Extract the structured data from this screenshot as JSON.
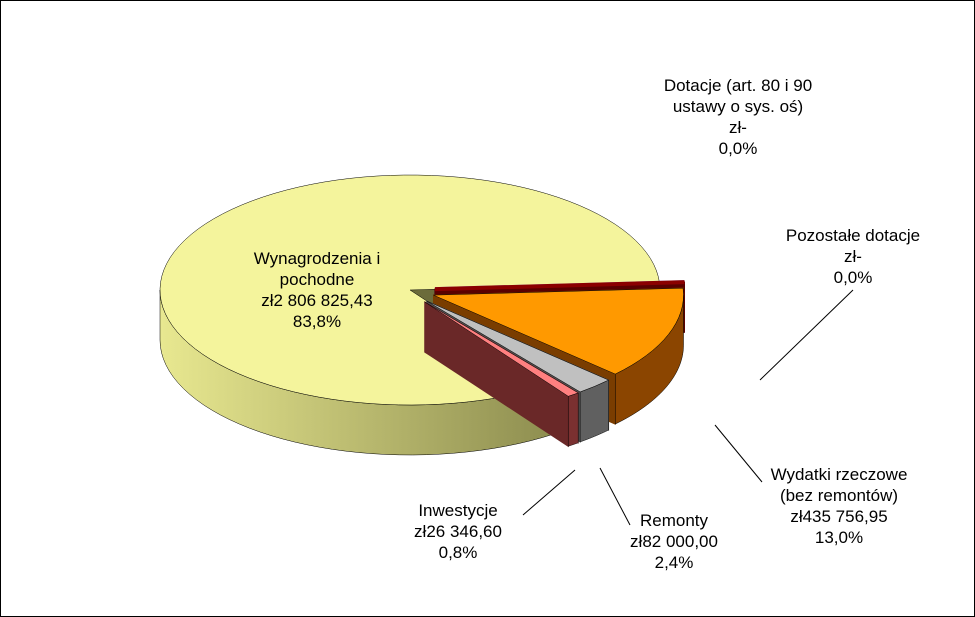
{
  "chart_data": {
    "type": "pie",
    "categories": [
      "Wynagrodzenia i pochodne",
      "Dotacje (art. 80 i 90 ustawy o sys. oś)",
      "Pozostałe dotacje",
      "Wydatki rzeczowe (bez remontów)",
      "Remonty",
      "Inwestycje"
    ],
    "values": [
      2806825.43,
      0,
      0,
      435756.95,
      82000.0,
      26346.6
    ],
    "value_labels": [
      "zł2 806 825,43",
      "zł-",
      "zł-",
      "zł435 756,95",
      "zł82 000,00",
      "zł26 346,60"
    ],
    "percents": [
      83.8,
      0.0,
      0.0,
      13.0,
      2.4,
      0.8
    ],
    "percent_labels": [
      "83,8%",
      "0,0%",
      "0,0%",
      "13,0%",
      "2,4%",
      "0,8%"
    ],
    "colors": [
      "#f4f49c",
      "#9999ff",
      "#8b0000",
      "#ff9900",
      "#c0c0c0",
      "#ff8080"
    ]
  }
}
